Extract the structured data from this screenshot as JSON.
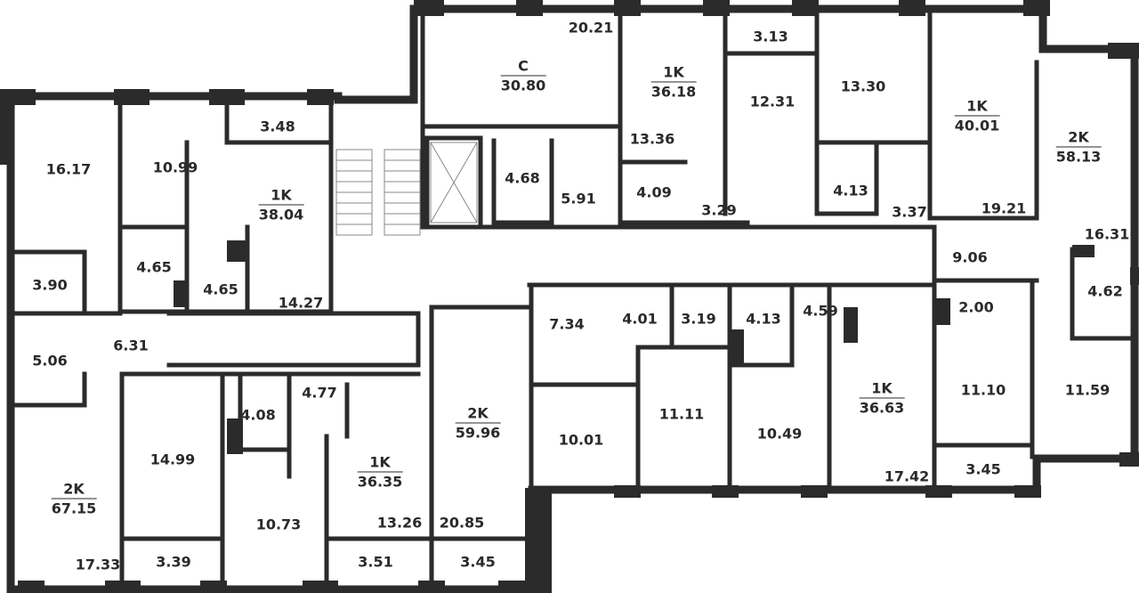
{
  "plan": {
    "wall_color": "#2b2b2b",
    "apartments": [
      {
        "type": "C",
        "area": "30.80"
      },
      {
        "type": "1K",
        "area": "36.18"
      },
      {
        "type": "1K",
        "area": "40.01"
      },
      {
        "type": "2K",
        "area": "58.13"
      },
      {
        "type": "1K",
        "area": "38.04"
      },
      {
        "type": "2K",
        "area": "59.96"
      },
      {
        "type": "1K",
        "area": "36.35"
      },
      {
        "type": "1K",
        "area": "36.63"
      },
      {
        "type": "2K",
        "area": "67.15"
      }
    ],
    "room_areas": [
      "20.21",
      "3.13",
      "12.31",
      "13.30",
      "13.36",
      "4.68",
      "5.91",
      "4.09",
      "3.29",
      "4.13",
      "3.37",
      "19.21",
      "16.31",
      "9.06",
      "4.62",
      "2.00",
      "11.10",
      "11.59",
      "3.45",
      "16.17",
      "10.99",
      "3.48",
      "4.65",
      "4.65",
      "14.27",
      "3.90",
      "5.06",
      "6.31",
      "7.34",
      "4.01",
      "3.19",
      "4.13",
      "4.59",
      "4.08",
      "4.77",
      "14.99",
      "10.01",
      "11.11",
      "10.49",
      "17.42",
      "10.73",
      "13.26",
      "20.85",
      "3.39",
      "3.51",
      "3.45",
      "17.33"
    ]
  }
}
